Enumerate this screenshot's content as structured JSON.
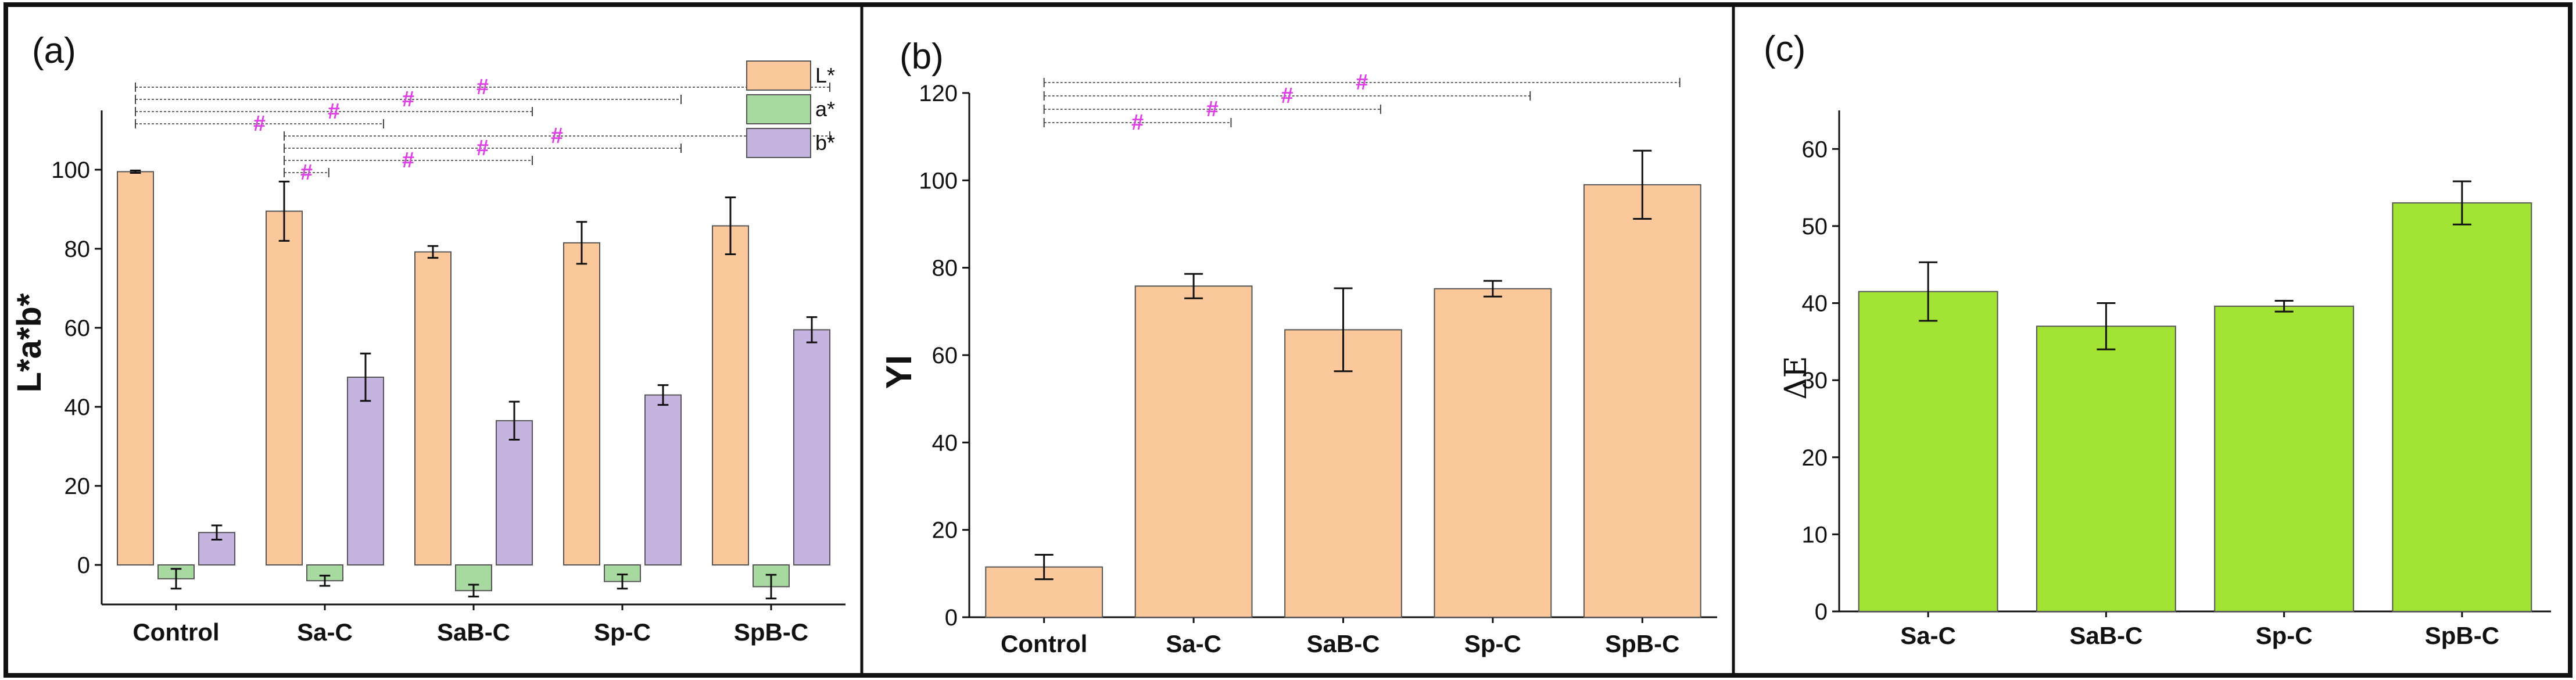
{
  "colors": {
    "L": "#fac89a",
    "a": "#a8d9a0",
    "b": "#c5b3e0",
    "yi": "#fac89a",
    "de": "#a3e334",
    "bar_stroke": "#555555",
    "sig": "#e040e8",
    "frame": "#111111"
  },
  "chart_data": [
    {
      "panel_label": "(a)",
      "type": "bar",
      "ylabel": "L*a*b*",
      "ylim": [
        -10,
        115
      ],
      "yticks": [
        "0",
        "20",
        "40",
        "60",
        "80",
        "100"
      ],
      "categories": [
        "Control",
        "Sa-C",
        "SaB-C",
        "Sp-C",
        "SpB-C"
      ],
      "series": [
        {
          "name": "L*",
          "color_key": "L",
          "values": [
            99.5,
            89.5,
            79.2,
            81.5,
            85.8
          ],
          "errors": [
            0.3,
            7.5,
            1.5,
            5.3,
            7.2
          ]
        },
        {
          "name": "a*",
          "color_key": "a",
          "values": [
            -3.5,
            -4.0,
            -6.5,
            -4.2,
            -5.5
          ],
          "errors": [
            2.5,
            1.3,
            1.5,
            1.8,
            3.0
          ]
        },
        {
          "name": "b*",
          "color_key": "b",
          "values": [
            8.2,
            47.5,
            36.5,
            43.0,
            59.5
          ],
          "errors": [
            1.8,
            6.0,
            4.8,
            2.5,
            3.2
          ]
        }
      ],
      "significance": [
        {
          "from": "Control",
          "to": "SpB-C",
          "mark": "#"
        },
        {
          "from": "Control",
          "to": "Sp-C",
          "mark": "#"
        },
        {
          "from": "Control",
          "to": "SaB-C",
          "mark": "#"
        },
        {
          "from": "Control",
          "to": "Sa-C",
          "mark": "#"
        },
        {
          "from": "Sa-C",
          "to": "SpB-C",
          "mark": "#"
        },
        {
          "from": "Sa-C",
          "to": "Sp-C",
          "mark": "#"
        },
        {
          "from": "Sa-C",
          "to": "SaB-C",
          "mark": "#"
        },
        {
          "from": "Sa-C",
          "to": "Sa-C",
          "mark": "#"
        }
      ]
    },
    {
      "panel_label": "(b)",
      "type": "bar",
      "ylabel": "YI",
      "ylim": [
        0,
        120
      ],
      "yticks": [
        "0",
        "20",
        "40",
        "60",
        "80",
        "100",
        "120"
      ],
      "categories": [
        "Control",
        "Sa-C",
        "SaB-C",
        "Sp-C",
        "SpB-C"
      ],
      "series": [
        {
          "name": "YI",
          "color_key": "yi",
          "values": [
            11.5,
            75.8,
            65.8,
            75.2,
            99.0
          ],
          "errors": [
            2.8,
            2.8,
            9.5,
            1.8,
            7.8
          ]
        }
      ],
      "significance": [
        {
          "from": "Control",
          "to": "SpB-C",
          "mark": "#"
        },
        {
          "from": "Control",
          "to": "Sp-C",
          "mark": "#"
        },
        {
          "from": "Control",
          "to": "SaB-C",
          "mark": "#"
        },
        {
          "from": "Control",
          "to": "Sa-C",
          "mark": "#"
        }
      ]
    },
    {
      "panel_label": "(c)",
      "type": "bar",
      "ylabel": "ΔE",
      "ylim": [
        0,
        65
      ],
      "yticks": [
        "0",
        "10",
        "20",
        "30",
        "40",
        "50",
        "60"
      ],
      "categories": [
        "Sa-C",
        "SaB-C",
        "Sp-C",
        "SpB-C"
      ],
      "series": [
        {
          "name": "ΔE",
          "color_key": "de",
          "values": [
            41.5,
            37.0,
            39.6,
            53.0
          ],
          "errors": [
            3.8,
            3.0,
            0.7,
            2.8
          ]
        }
      ],
      "significance": []
    }
  ]
}
